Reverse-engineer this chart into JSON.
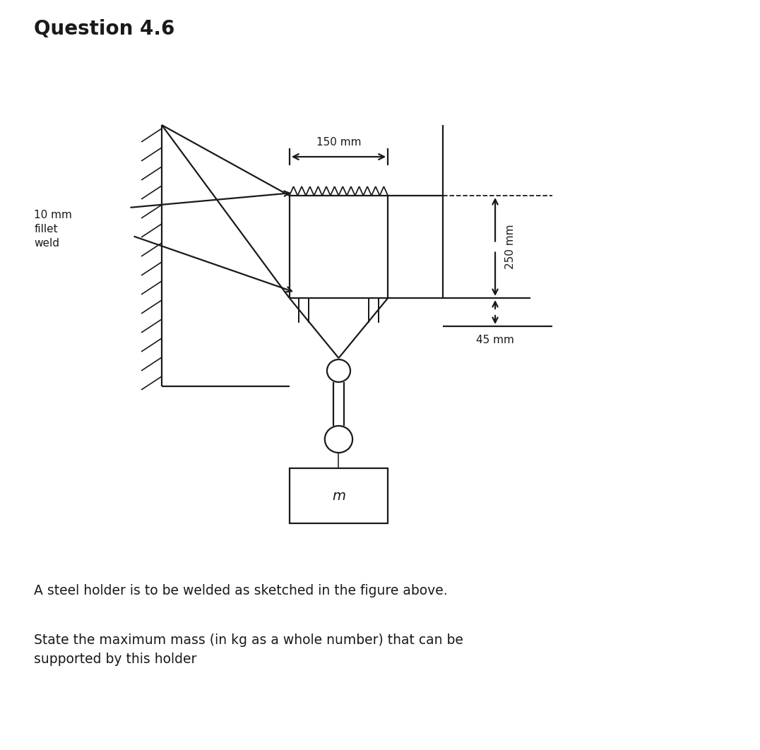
{
  "title": "Question 4.6",
  "title_fontsize": 20,
  "title_fontweight": "bold",
  "bg_color": "#ffffff",
  "lc": "#1a1a1a",
  "label_10mm": "10 mm\nfillet\nweld",
  "label_150mm": "150 mm",
  "label_250mm": "250 mm",
  "label_45mm": "45 mm",
  "mass_label": "m",
  "q_text1": "A steel holder is to be welded as sketched in the figure above.",
  "q_text2": "State the maximum mass (in kg as a whole number) that can be\nsupported by this holder",
  "lw": 1.6
}
